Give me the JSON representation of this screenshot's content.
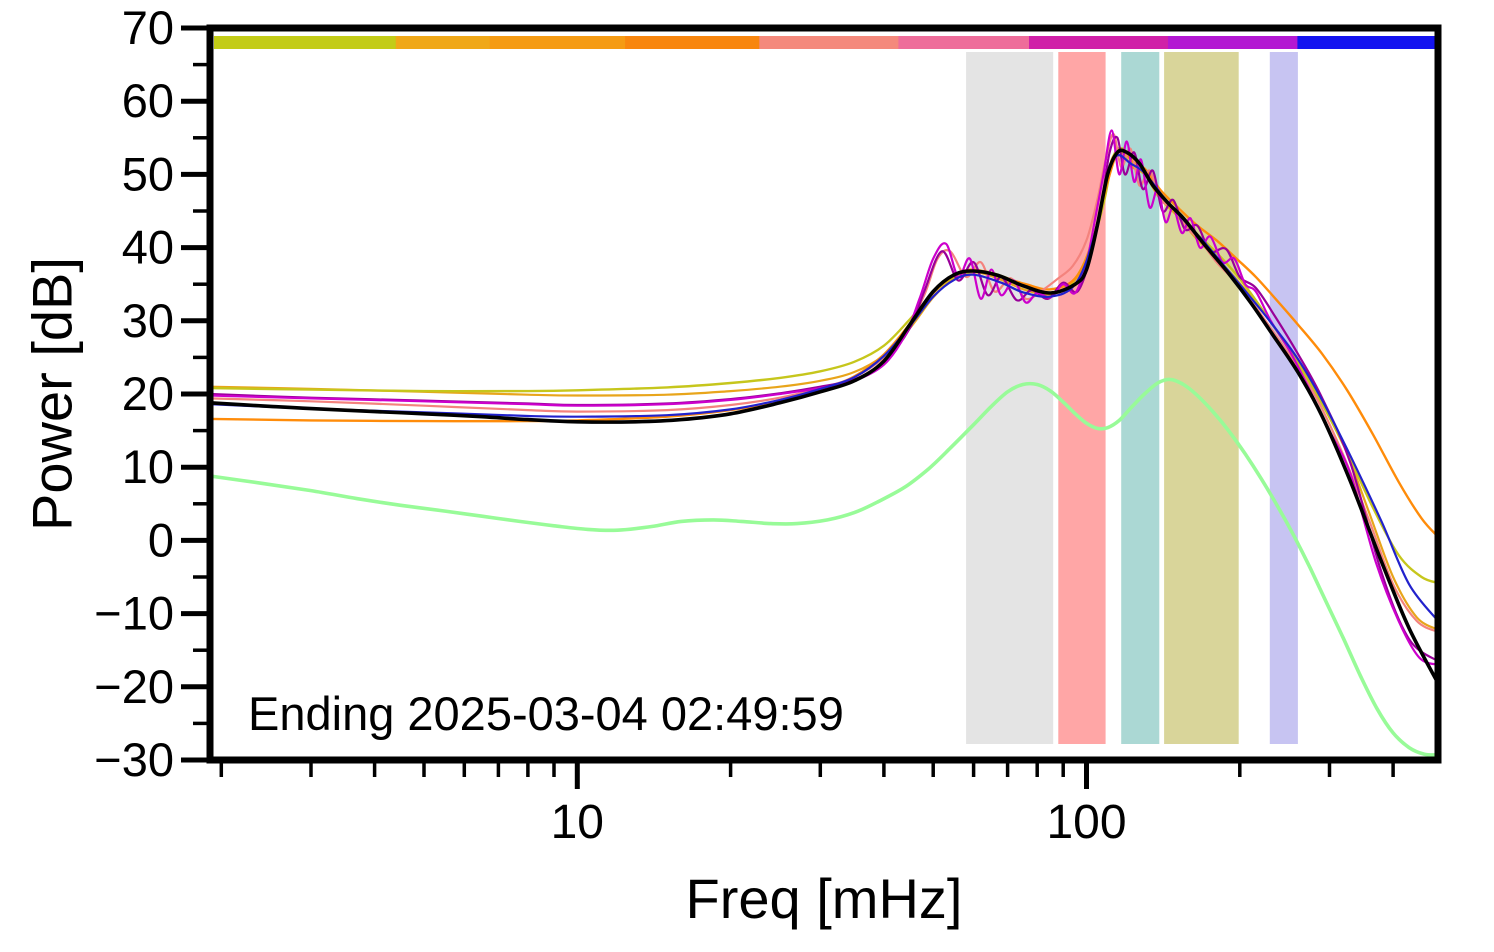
{
  "figure": {
    "background": "#ffffff"
  },
  "chart_data": {
    "type": "line",
    "title": "",
    "xlabel": "Freq [mHz]",
    "ylabel": "Power [dB]",
    "annotation": "Ending 2025-03-04 02:49:59",
    "xscale": "log",
    "xlim": [
      1.9,
      490
    ],
    "ylim": [
      -30,
      70
    ],
    "grid": false,
    "legend": false,
    "xticks_major": [
      10,
      100
    ],
    "xtick_labels": [
      "10",
      "100"
    ],
    "xticks_minor": [
      2,
      3,
      4,
      5,
      6,
      7,
      8,
      9,
      20,
      30,
      40,
      50,
      60,
      70,
      80,
      90,
      200,
      300,
      400
    ],
    "yticks_major": [
      -30,
      -20,
      -10,
      0,
      10,
      20,
      30,
      40,
      50,
      60,
      70
    ],
    "ytick_labels": [
      "−30",
      "−20",
      "−10",
      "0",
      "10",
      "20",
      "30",
      "40",
      "50",
      "60",
      "70"
    ],
    "yticks_minor": [
      -25,
      -15,
      -5,
      5,
      15,
      25,
      35,
      45,
      55,
      65
    ],
    "top_colorbar": {
      "description": "time-segment color strip along top of plot",
      "segments": [
        {
          "f0": 0.0,
          "f1": 0.149,
          "color": "#c3cc17"
        },
        {
          "f0": 0.149,
          "f1": 0.226,
          "color": "#f0a818"
        },
        {
          "f0": 0.226,
          "f1": 0.337,
          "color": "#f59b13"
        },
        {
          "f0": 0.337,
          "f1": 0.447,
          "color": "#f8860e"
        },
        {
          "f0": 0.447,
          "f1": 0.561,
          "color": "#f4897c"
        },
        {
          "f0": 0.561,
          "f1": 0.668,
          "color": "#ee6d9a"
        },
        {
          "f0": 0.668,
          "f1": 0.782,
          "color": "#d020a8"
        },
        {
          "f0": 0.782,
          "f1": 0.888,
          "color": "#b318d2"
        },
        {
          "f0": 0.888,
          "f1": 1.0,
          "color": "#1414f0"
        }
      ]
    },
    "bands": [
      {
        "x0": 58,
        "x1": 86,
        "color": "#e4e4e4"
      },
      {
        "x0": 88,
        "x1": 109,
        "color": "#ffa6a6"
      },
      {
        "x0": 117,
        "x1": 139,
        "color": "#abd8d4"
      },
      {
        "x0": 142,
        "x1": 199,
        "color": "#d9d59a"
      },
      {
        "x0": 229,
        "x1": 260,
        "color": "#c7c4f2"
      }
    ],
    "series": [
      {
        "name": "goldenrod",
        "color": "#e8a51b",
        "width": 2.2,
        "x": [
          1.9,
          3,
          5,
          8,
          10,
          15,
          20,
          25,
          30,
          35,
          40,
          45,
          50,
          55,
          61,
          68,
          76,
          85,
          94,
          101,
          107,
          112,
          117,
          123,
          130,
          139,
          150,
          163,
          178,
          195,
          213,
          233,
          258,
          288,
          320,
          358,
          400,
          445,
          490
        ],
        "y": [
          21,
          20.7,
          20.3,
          19.9,
          19.8,
          19.9,
          20.4,
          21,
          21.8,
          23,
          25.3,
          29,
          33.2,
          35.8,
          36.6,
          35.6,
          34.2,
          33.6,
          35.2,
          39.5,
          45.5,
          52,
          53,
          51,
          50,
          46.8,
          44.5,
          41.5,
          38.8,
          36,
          32.8,
          29.3,
          24.8,
          19.3,
          13,
          4,
          -5,
          -10.5,
          -12.2
        ]
      },
      {
        "name": "yellow-green",
        "color": "#c6c61c",
        "width": 2.4,
        "x": [
          1.9,
          3,
          5,
          8,
          10,
          15,
          20,
          25,
          30,
          35,
          40,
          45,
          50,
          55,
          62,
          70,
          78,
          86,
          94,
          102,
          108,
          113,
          118,
          124,
          131,
          140,
          152,
          165,
          180,
          197,
          215,
          238,
          262,
          292,
          325,
          365,
          410,
          455,
          490
        ],
        "y": [
          20.8,
          20.6,
          20.4,
          20.4,
          20.5,
          20.9,
          21.5,
          22.2,
          23.1,
          24.4,
          26.6,
          30.2,
          33.8,
          36,
          36.8,
          35.8,
          34.3,
          33.8,
          35.3,
          40,
          46,
          52.5,
          53.5,
          51.5,
          50.3,
          47.3,
          44.3,
          41.8,
          39.3,
          36.3,
          32.8,
          28.3,
          23.8,
          18.3,
          12,
          4.5,
          -2,
          -5,
          -5.8
        ]
      },
      {
        "name": "orange",
        "color": "#ff8c0a",
        "width": 2.4,
        "x": [
          1.9,
          3,
          5,
          8,
          10,
          15,
          20,
          25,
          30,
          35,
          40,
          45,
          50,
          55,
          60,
          68,
          76,
          85,
          95,
          103,
          110,
          116,
          123,
          130,
          140,
          152,
          165,
          180,
          197,
          215,
          235,
          260,
          290,
          325,
          365,
          410,
          455,
          490
        ],
        "y": [
          16.6,
          16.4,
          16.3,
          16.3,
          16.4,
          16.9,
          17.8,
          19,
          20.6,
          22.4,
          25.4,
          29.6,
          33.8,
          36.2,
          37,
          36,
          35,
          34.3,
          35.8,
          41,
          49,
          53.3,
          51.8,
          50.8,
          47.8,
          45.3,
          43,
          41,
          38.5,
          36,
          33,
          29.5,
          25.5,
          20.5,
          14.5,
          8,
          3,
          0.5
        ]
      },
      {
        "name": "salmon",
        "color": "#f4837d",
        "width": 2.2,
        "x": [
          1.9,
          3,
          5,
          8,
          10,
          15,
          20,
          25,
          30,
          35,
          40,
          44,
          48,
          51,
          54,
          58,
          62,
          66,
          71,
          76,
          82,
          88,
          94,
          100,
          105,
          109,
          113,
          117,
          122,
          127,
          133,
          140,
          148,
          157,
          167,
          180,
          195,
          210,
          230,
          255,
          285,
          320,
          360,
          400,
          445,
          490
        ],
        "y": [
          19.4,
          19,
          18.4,
          17.8,
          17.6,
          17.8,
          18.5,
          19.5,
          20.8,
          22.3,
          25,
          28.5,
          33.5,
          38.5,
          39.5,
          36,
          38,
          34,
          35.8,
          33,
          34.2,
          35.8,
          37.5,
          41,
          46.5,
          52,
          55.5,
          51,
          53.5,
          48.5,
          50.5,
          46.5,
          45.5,
          42.8,
          41,
          38,
          35.5,
          32.8,
          29,
          24.5,
          19,
          11.5,
          2.5,
          -6,
          -11,
          -12.5
        ]
      },
      {
        "name": "dark-magenta",
        "color": "#990099",
        "width": 2.2,
        "x": [
          1.9,
          3,
          5,
          8,
          10,
          15,
          20,
          25,
          30,
          35,
          40,
          45,
          48,
          52,
          56,
          60,
          64,
          68,
          73,
          78,
          84,
          90,
          96,
          102,
          107,
          111,
          115,
          119,
          124,
          129,
          135,
          141,
          148,
          156,
          165,
          175,
          188,
          200,
          215,
          235,
          260,
          290,
          330,
          380,
          430,
          490
        ],
        "y": [
          20,
          19.5,
          19.1,
          18.7,
          18.5,
          18.7,
          19.3,
          20.1,
          21,
          22,
          24.3,
          29,
          34,
          39.5,
          35.5,
          38,
          33.5,
          36,
          32.8,
          34.2,
          33,
          35.2,
          34,
          39,
          46,
          53,
          55,
          50,
          53,
          48,
          50.5,
          45,
          46.5,
          42.5,
          43,
          39.5,
          39.8,
          36,
          34.5,
          30.5,
          25.5,
          19.5,
          10.5,
          -4.5,
          -13.5,
          -16.5
        ]
      },
      {
        "name": "magenta",
        "color": "#cc00cc",
        "width": 2.2,
        "x": [
          1.9,
          3,
          5,
          8,
          10,
          15,
          20,
          25,
          30,
          35,
          40,
          44,
          47,
          50,
          53,
          56,
          59,
          62,
          65,
          68,
          72,
          76,
          80,
          85,
          90,
          95,
          100,
          104,
          108,
          112,
          116,
          120,
          124,
          128,
          133,
          138,
          143,
          148,
          154,
          160,
          167,
          175,
          185,
          195,
          205,
          215,
          230,
          250,
          270,
          300,
          330,
          370,
          410,
          450,
          490
        ],
        "y": [
          19.8,
          19.4,
          19,
          18.6,
          18.4,
          18.6,
          19.2,
          20,
          20.8,
          21.8,
          24,
          28,
          33,
          38.5,
          40.5,
          36,
          38.5,
          33,
          37,
          33.5,
          35.5,
          32.5,
          33.8,
          33.2,
          35,
          33.8,
          38,
          44,
          50,
          56,
          50,
          54.5,
          49,
          52,
          45.5,
          48,
          43.5,
          45.5,
          42,
          44,
          40,
          41.5,
          38,
          38.5,
          35,
          34,
          30,
          26,
          21.5,
          15,
          9,
          -3,
          -11,
          -16,
          -17
        ]
      },
      {
        "name": "blue",
        "color": "#2222cc",
        "width": 2.2,
        "x": [
          1.9,
          3,
          5,
          8,
          10,
          15,
          20,
          25,
          30,
          35,
          40,
          45,
          50,
          55,
          60,
          68,
          75,
          85,
          95,
          103,
          110,
          115,
          122,
          130,
          142,
          155,
          170,
          190,
          210,
          230,
          260,
          290,
          330,
          380,
          430,
          490
        ],
        "y": [
          18.6,
          18,
          17.5,
          17,
          16.9,
          17.1,
          17.9,
          19.2,
          20.7,
          22.3,
          25.2,
          29.3,
          33.3,
          35.6,
          36.3,
          35.2,
          33.9,
          33.3,
          35,
          41,
          50,
          52.6,
          51.5,
          50.2,
          46.8,
          43.8,
          40.8,
          36.8,
          33.2,
          29.8,
          24.8,
          19.2,
          11.5,
          2.5,
          -6,
          -11
        ]
      },
      {
        "name": "pale-green",
        "color": "#98fb98",
        "width": 3.6,
        "x": [
          1.9,
          2.4,
          3,
          3.7,
          4.5,
          5.5,
          6.5,
          7.7,
          9,
          10.5,
          12,
          14,
          16,
          18.5,
          21,
          24,
          27,
          31,
          35,
          39,
          44,
          49,
          54,
          60,
          65,
          70,
          75,
          80,
          85,
          90,
          95,
          100,
          105,
          110,
          116,
          123,
          130,
          138,
          146,
          155,
          165,
          177,
          190,
          205,
          220,
          238,
          256,
          275,
          296,
          320,
          345,
          372,
          400,
          430,
          460,
          490
        ],
        "y": [
          8.8,
          7.8,
          6.8,
          5.7,
          4.8,
          4,
          3.3,
          2.6,
          2,
          1.5,
          1.4,
          1.9,
          2.6,
          2.8,
          2.6,
          2.3,
          2.3,
          2.8,
          3.8,
          5.3,
          7.3,
          9.8,
          12.6,
          15.8,
          18.3,
          20.3,
          21.3,
          21.3,
          20.4,
          18.9,
          17.3,
          16,
          15.3,
          15.4,
          16.4,
          18.3,
          20,
          21.5,
          22,
          21.3,
          19.8,
          17.6,
          15,
          11.8,
          8.5,
          4.5,
          0.5,
          -3.8,
          -8.5,
          -13.5,
          -18.5,
          -23,
          -26.3,
          -28.3,
          -29.2,
          -29.3
        ]
      },
      {
        "name": "mean-black",
        "color": "#000000",
        "width": 3.6,
        "x": [
          1.9,
          2.5,
          3,
          4,
          5,
          6.5,
          8,
          10,
          13,
          16,
          20,
          25,
          30,
          35,
          40,
          45,
          50,
          55,
          60,
          67,
          75,
          85,
          95,
          100,
          105,
          110,
          115,
          120,
          127,
          135,
          145,
          155,
          170,
          190,
          210,
          230,
          260,
          290,
          330,
          380,
          430,
          490
        ],
        "y": [
          18.8,
          18.3,
          18,
          17.6,
          17.3,
          16.9,
          16.5,
          16.2,
          16.2,
          16.5,
          17.3,
          18.8,
          20.3,
          21.8,
          24.5,
          29.5,
          34,
          36.3,
          36.8,
          36.2,
          34.8,
          33.8,
          35,
          37,
          43,
          50,
          53,
          53,
          51.5,
          48.5,
          46,
          44,
          40.5,
          36.5,
          32.5,
          28.5,
          23,
          17,
          8,
          -3,
          -12,
          -19.5
        ]
      }
    ]
  }
}
